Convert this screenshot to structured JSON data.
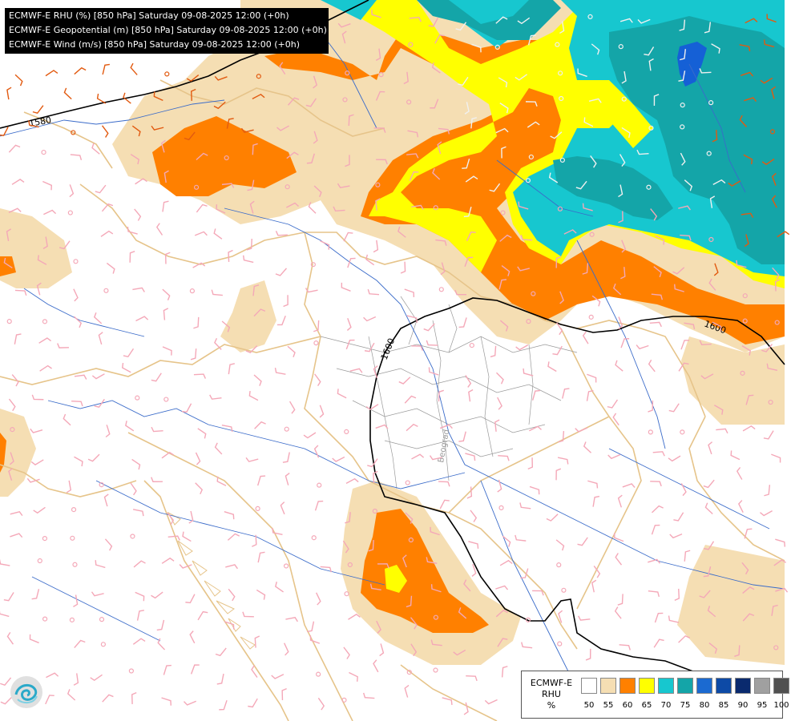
{
  "titles": [
    "ECMWF-E RHU (%) [850 hPa] Saturday 09-08-2025 12:00 (+0h)",
    "ECMWF-E Geopotential (m) [850 hPa] Saturday 09-08-2025 12:00 (+0h)",
    "ECMWF-E Wind (m/s) [850 hPa] Saturday 09-08-2025 12:00 (+0h)"
  ],
  "legend": {
    "model": "ECMWF-E",
    "variable": "RHU",
    "unit": "%",
    "ticks": [
      "50",
      "55",
      "60",
      "65",
      "70",
      "75",
      "80",
      "85",
      "90",
      "95",
      "100"
    ],
    "colors": [
      "#ffffff",
      "#f5deb3",
      "#ff8000",
      "#ffff00",
      "#17c7cf",
      "#14a5a8",
      "#1b6ad1",
      "#0d4aa6",
      "#0a2a6e",
      "#a0a0a0",
      "#505050"
    ]
  },
  "contours": {
    "labels": [
      "1580",
      "1600",
      "1600"
    ]
  },
  "map_labels": {
    "city": "Beograd"
  },
  "colors": {
    "cyan": "#1bc6cf",
    "teal": "#16a0a4",
    "blue": "#1560d6",
    "yellow": "#ffff00",
    "orange": "#ff8000",
    "tan": "#f5deb3",
    "river": "#3a6bc9",
    "border": "#e6c48a",
    "subborder": "#9a9a9a",
    "barb_pink": "#f4a8b8",
    "barb_white": "#f0f0f0",
    "barb_orange": "#e25a10",
    "contour": "#000000"
  }
}
